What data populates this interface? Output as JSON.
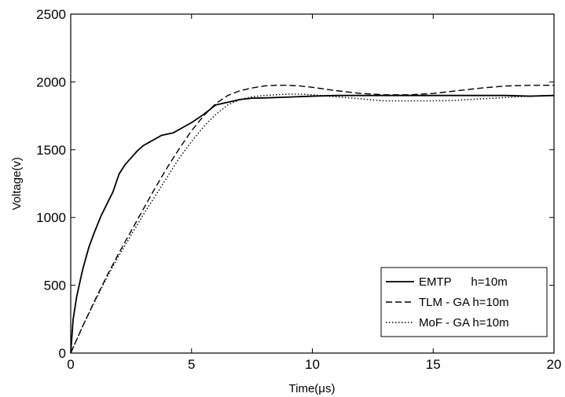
{
  "chart_data": {
    "type": "line",
    "title": "",
    "xlabel": "Time(μs)",
    "ylabel": "Voltage(v)",
    "xlim": [
      0,
      20
    ],
    "ylim": [
      0,
      2500
    ],
    "x_ticks": [
      0,
      5,
      10,
      15,
      20
    ],
    "y_ticks": [
      0,
      500,
      1000,
      1500,
      2000,
      2500
    ],
    "x_tick_labels": [
      "0",
      "5",
      "10",
      "15",
      "20"
    ],
    "y_tick_labels": [
      "0",
      "500",
      "1000",
      "1500",
      "2000",
      "2500"
    ],
    "grid": false,
    "legend_position": "bottom-right",
    "series": [
      {
        "name": "EMTP      h=10m",
        "style": "solid",
        "x": [
          0,
          0.1,
          0.25,
          0.5,
          0.75,
          1.0,
          1.25,
          1.5,
          1.75,
          2.0,
          2.25,
          2.5,
          2.75,
          3.0,
          3.25,
          3.5,
          3.75,
          4.0,
          4.25,
          4.5,
          5.0,
          5.5,
          6.0,
          6.5,
          7.0,
          7.5,
          8.0,
          9.0,
          10.0,
          11.0,
          12.0,
          13.0,
          14.0,
          15.0,
          16.0,
          17.0,
          18.0,
          19.0,
          20.0
        ],
        "y": [
          0,
          250,
          420,
          620,
          780,
          900,
          1010,
          1100,
          1190,
          1320,
          1390,
          1440,
          1490,
          1530,
          1555,
          1580,
          1605,
          1615,
          1625,
          1650,
          1700,
          1760,
          1830,
          1850,
          1870,
          1880,
          1882,
          1888,
          1895,
          1900,
          1900,
          1900,
          1900,
          1900,
          1900,
          1900,
          1900,
          1895,
          1900
        ]
      },
      {
        "name": "TLM - GA h=10m",
        "style": "dashed",
        "x": [
          0,
          0.5,
          1.0,
          1.5,
          2.0,
          2.5,
          3.0,
          3.5,
          4.0,
          4.5,
          5.0,
          5.5,
          6.0,
          6.5,
          7.0,
          7.5,
          8.0,
          8.5,
          9.0,
          9.5,
          10.0,
          11.0,
          12.0,
          13.0,
          14.0,
          15.0,
          16.0,
          17.0,
          18.0,
          19.0,
          20.0
        ],
        "y": [
          0,
          200,
          390,
          570,
          740,
          900,
          1060,
          1220,
          1370,
          1510,
          1640,
          1750,
          1840,
          1900,
          1935,
          1955,
          1970,
          1975,
          1975,
          1970,
          1960,
          1935,
          1915,
          1905,
          1905,
          1915,
          1935,
          1955,
          1970,
          1975,
          1975
        ]
      },
      {
        "name": "MoF - GA h=10m",
        "style": "dotted",
        "x": [
          0,
          0.5,
          1.0,
          1.5,
          2.0,
          2.5,
          3.0,
          3.5,
          4.0,
          4.5,
          5.0,
          5.5,
          6.0,
          6.5,
          7.0,
          7.5,
          8.0,
          8.5,
          9.0,
          9.5,
          10.0,
          11.0,
          12.0,
          13.0,
          14.0,
          15.0,
          16.0,
          17.0,
          18.0,
          19.0,
          20.0
        ],
        "y": [
          0,
          200,
          380,
          560,
          720,
          870,
          1020,
          1160,
          1300,
          1440,
          1560,
          1670,
          1760,
          1830,
          1870,
          1890,
          1900,
          1905,
          1910,
          1910,
          1905,
          1890,
          1875,
          1860,
          1860,
          1860,
          1865,
          1875,
          1885,
          1895,
          1900
        ]
      }
    ]
  }
}
